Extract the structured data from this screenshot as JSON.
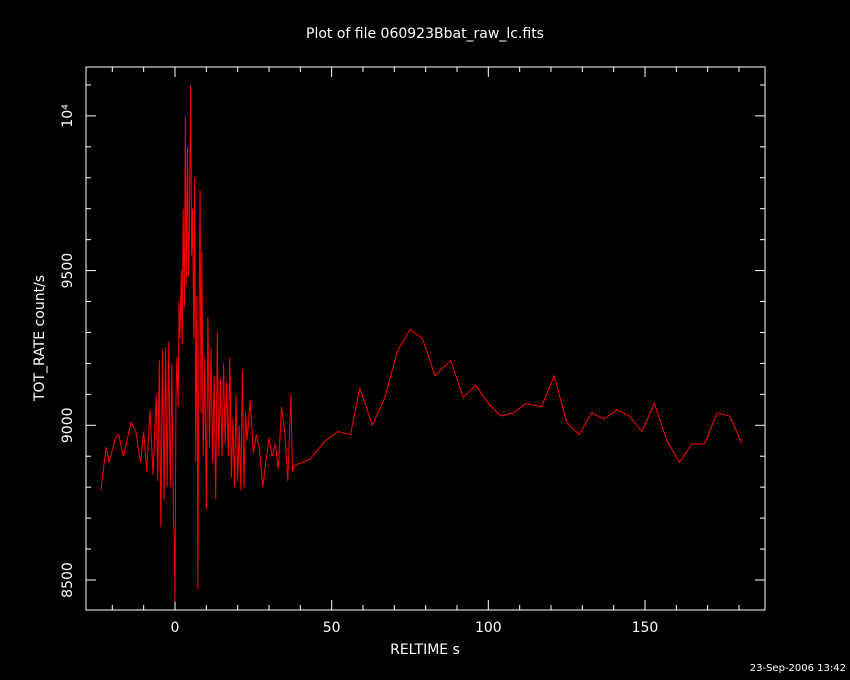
{
  "chart_data": {
    "type": "line",
    "title": "Plot of file 060923Bbat_raw_lc.fits",
    "x_label": "RELTIME  s",
    "y_label": "TOT_RATE  count/s",
    "footer": "23-Sep-2006 13:42",
    "xlim": [
      -28.4,
      188.3
    ],
    "ylim": [
      8403,
      10158
    ],
    "xticks": [
      0,
      50,
      100,
      150
    ],
    "yticks": [
      8500,
      9000,
      9500,
      {
        "value": 10000,
        "label": "10⁴"
      }
    ],
    "xminorticks": [
      -20,
      -10,
      10,
      20,
      30,
      40,
      60,
      70,
      80,
      90,
      110,
      120,
      130,
      140,
      160,
      170,
      180
    ],
    "yminorticks": [
      8600,
      8700,
      8800,
      8900,
      9100,
      9200,
      9300,
      9400,
      9600,
      9700,
      9800,
      9900,
      10100
    ],
    "series": [
      {
        "name": "TOT_RATE",
        "color": "#ff0000",
        "x": [
          -23.6,
          -22,
          -21,
          -19,
          -18,
          -16.5,
          -14,
          -12.5,
          -11,
          -10,
          -9,
          -8,
          -7,
          -6,
          -5.5,
          -5,
          -4.5,
          -4,
          -3.5,
          -3,
          -2.5,
          -2,
          -1.5,
          -1,
          -0.5,
          -0.2,
          0,
          0.3,
          0.6,
          1,
          1.3,
          1.6,
          2,
          2.3,
          2.6,
          3,
          3.3,
          3.6,
          4,
          4.3,
          4.6,
          5,
          5.3,
          5.6,
          6,
          6.3,
          6.6,
          7,
          7.3,
          7.6,
          8,
          8.3,
          8.6,
          9,
          9.5,
          10,
          10.5,
          11,
          11.5,
          12,
          12.5,
          13,
          13.5,
          14,
          14.5,
          15,
          15.5,
          16,
          16.5,
          17,
          17.5,
          18,
          18.5,
          19,
          19.5,
          20,
          20.5,
          21,
          21.5,
          22,
          22.5,
          23,
          24,
          25,
          26,
          27,
          28,
          29,
          30,
          31,
          32,
          33,
          34,
          35,
          36,
          37,
          37.5,
          38,
          43,
          48,
          52,
          56,
          59,
          63,
          67,
          71,
          75,
          79,
          83,
          88,
          92,
          96,
          100,
          104,
          108,
          112,
          117,
          121,
          125,
          129,
          133,
          137,
          141,
          145,
          149,
          153,
          157,
          161,
          165,
          169,
          173,
          177,
          181
        ],
        "values": [
          8790,
          8930,
          8880,
          8960,
          8970,
          8900,
          9010,
          8980,
          8880,
          8980,
          8850,
          9050,
          8840,
          9100,
          8820,
          9210,
          8670,
          9240,
          8760,
          9250,
          8800,
          9270,
          8800,
          9200,
          8700,
          8620,
          8430,
          9080,
          9220,
          9060,
          9400,
          9280,
          9500,
          9260,
          9700,
          9380,
          10000,
          9450,
          9900,
          9480,
          9640,
          10100,
          9550,
          9700,
          9280,
          9800,
          8880,
          9420,
          8470,
          9220,
          9760,
          9040,
          9560,
          8900,
          9220,
          8730,
          9350,
          8930,
          9250,
          8880,
          9160,
          8760,
          9300,
          8900,
          9150,
          8900,
          9200,
          8940,
          9140,
          8900,
          9220,
          8830,
          9020,
          8800,
          9100,
          8820,
          9000,
          8790,
          9180,
          8800,
          9040,
          8950,
          9080,
          8910,
          8970,
          8920,
          8800,
          8880,
          8960,
          8900,
          8940,
          8860,
          9060,
          8980,
          8820,
          9100,
          8850,
          8870,
          8890,
          8950,
          8980,
          8970,
          9120,
          9000,
          9090,
          9240,
          9310,
          9280,
          9160,
          9210,
          9090,
          9130,
          9070,
          9030,
          9040,
          9070,
          9060,
          9160,
          9010,
          8970,
          9040,
          9020,
          9050,
          9030,
          8980,
          9070,
          8950,
          8880,
          8940,
          8940,
          9040,
          9030,
          8940
        ]
      }
    ]
  }
}
